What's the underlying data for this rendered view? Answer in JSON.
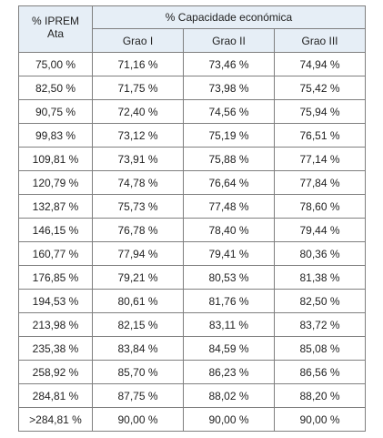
{
  "table": {
    "corner_header_line1": "% IPREM",
    "corner_header_line2": "Ata",
    "group_header": "% Capacidade económica",
    "grades": [
      "Grao I",
      "Grao II",
      "Grao III"
    ],
    "rows": [
      [
        "75,00 %",
        "71,16 %",
        "73,46 %",
        "74,94 %"
      ],
      [
        "82,50 %",
        "71,75 %",
        "73,98 %",
        "75,42 %"
      ],
      [
        "90,75 %",
        "72,40 %",
        "74,56 %",
        "75,94 %"
      ],
      [
        "99,83 %",
        "73,12 %",
        "75,19 %",
        "76,51 %"
      ],
      [
        "109,81 %",
        "73,91 %",
        "75,88 %",
        "77,14 %"
      ],
      [
        "120,79 %",
        "74,78 %",
        "76,64 %",
        "77,84 %"
      ],
      [
        "132,87 %",
        "75,73 %",
        "77,48 %",
        "78,60 %"
      ],
      [
        "146,15 %",
        "76,78 %",
        "78,40 %",
        "79,44 %"
      ],
      [
        "160,77 %",
        "77,94 %",
        "79,41 %",
        "80,36 %"
      ],
      [
        "176,85 %",
        "79,21 %",
        "80,53 %",
        "81,38 %"
      ],
      [
        "194,53 %",
        "80,61 %",
        "81,76 %",
        "82,50 %"
      ],
      [
        "213,98 %",
        "82,15 %",
        "83,11 %",
        "83,72 %"
      ],
      [
        "235,38 %",
        "83,84 %",
        "84,59 %",
        "85,08 %"
      ],
      [
        "258,92 %",
        "85,70 %",
        "86,23 %",
        "86,56 %"
      ],
      [
        "284,81 %",
        "87,75 %",
        "88,02 %",
        "88,20 %"
      ],
      [
        ">284,81 %",
        "90,00 %",
        "90,00 %",
        "90,00 %"
      ]
    ]
  },
  "colors": {
    "header_background": "#e6eef6",
    "border": "#7f7f7f",
    "text": "#222222"
  }
}
